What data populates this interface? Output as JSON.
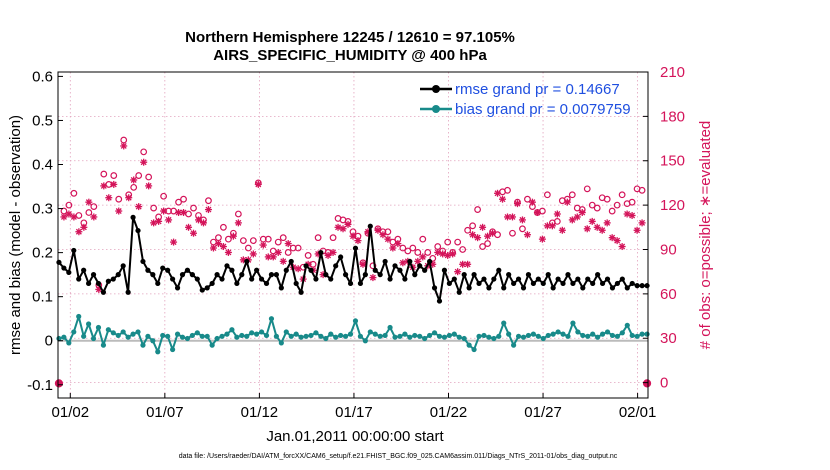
{
  "chart_data": {
    "type": "line",
    "title_line1": "Northern Hemisphere 12245 / 12610 = 97.105%",
    "title_line2": "AIRS_SPECIFIC_HUMIDITY @ 400 hPa",
    "xlabel": "Jan.01,2011 00:00:00 start",
    "ylabel_left": "rmse and bias (model - observation)",
    "ylabel_right": "# of obs: o=possible; ∗=evaluated",
    "footer": "data file: /Users/raeder/DAI/ATM_forcXX/CAM6_setup/f.e21.FHIST_BGC.f09_025.CAM6assim.011/Diags_NTrS_2011-01/obs_diag_output.nc",
    "x_range": [
      0.35,
      31.55
    ],
    "ylim_left": [
      -0.13,
      0.61
    ],
    "ylim_right": [
      -10.4,
      210
    ],
    "left_ticks": [
      "-0.1",
      "0",
      "0.1",
      "0.2",
      "0.3",
      "0.4",
      "0.5",
      "0.6"
    ],
    "right_ticks": [
      "0",
      "30",
      "60",
      "90",
      "120",
      "150",
      "180",
      "210"
    ],
    "x_ticks": [
      {
        "label": "01/02",
        "day": 1
      },
      {
        "label": "01/07",
        "day": 6
      },
      {
        "label": "01/12",
        "day": 11
      },
      {
        "label": "01/17",
        "day": 16
      },
      {
        "label": "01/22",
        "day": 21
      },
      {
        "label": "01/27",
        "day": 26
      },
      {
        "label": "02/01",
        "day": 31
      }
    ],
    "colors": {
      "rmse": "#000000",
      "bias": "#188a8a",
      "obs": "#d4145a",
      "legend_text": "#1f4fe0",
      "zero_line": "#bbbbbb",
      "grid": "#e2a2bd"
    },
    "series": [
      {
        "name": "rmse",
        "legend": "rmse grand pr = 0.14667",
        "color": "#000000",
        "values": [
          0.178,
          0.165,
          0.155,
          0.205,
          0.14,
          0.16,
          0.13,
          0.15,
          0.13,
          0.11,
          0.135,
          0.14,
          0.15,
          0.17,
          0.11,
          0.28,
          0.25,
          0.18,
          0.16,
          0.15,
          0.13,
          0.165,
          0.16,
          0.14,
          0.12,
          0.15,
          0.16,
          0.15,
          0.14,
          0.115,
          0.12,
          0.13,
          0.15,
          0.14,
          0.17,
          0.16,
          0.13,
          0.15,
          0.18,
          0.14,
          0.16,
          0.14,
          0.13,
          0.15,
          0.15,
          0.12,
          0.16,
          0.18,
          0.13,
          0.11,
          0.17,
          0.16,
          0.14,
          0.2,
          0.15,
          0.14,
          0.17,
          0.19,
          0.15,
          0.13,
          0.21,
          0.13,
          0.15,
          0.26,
          0.16,
          0.15,
          0.18,
          0.14,
          0.17,
          0.16,
          0.14,
          0.18,
          0.15,
          0.17,
          0.16,
          0.18,
          0.12,
          0.09,
          0.16,
          0.13,
          0.14,
          0.11,
          0.15,
          0.12,
          0.15,
          0.13,
          0.14,
          0.12,
          0.14,
          0.16,
          0.12,
          0.15,
          0.13,
          0.14,
          0.12,
          0.15,
          0.13,
          0.14,
          0.13,
          0.15,
          0.12,
          0.14,
          0.13,
          0.15,
          0.13,
          0.14,
          0.12,
          0.14,
          0.13,
          0.15,
          0.13,
          0.14,
          0.12,
          0.13,
          0.14,
          0.12,
          0.13,
          0.125,
          0.125,
          0.125
        ]
      },
      {
        "name": "bias",
        "legend": "bias grand pr = 0.0079759",
        "color": "#188a8a",
        "values": [
          0.005,
          0.008,
          -0.005,
          0.02,
          0.055,
          0.01,
          0.038,
          0.005,
          0.03,
          -0.01,
          0.025,
          0.018,
          0.012,
          0.02,
          0.008,
          0.015,
          0.02,
          -0.01,
          0.01,
          0.0,
          -0.025,
          0.012,
          0.01,
          -0.02,
          0.015,
          0.008,
          0.005,
          0.012,
          0.018,
          0.01,
          0.01,
          -0.01,
          0.005,
          0.01,
          0.015,
          0.025,
          0.008,
          0.012,
          0.01,
          0.018,
          0.015,
          0.02,
          0.012,
          0.05,
          0.01,
          -0.005,
          0.02,
          0.01,
          0.015,
          0.008,
          0.01,
          0.012,
          0.018,
          0.01,
          0.005,
          0.015,
          0.008,
          0.012,
          0.01,
          0.015,
          0.045,
          0.01,
          0.0,
          0.02,
          0.015,
          0.01,
          0.012,
          0.03,
          0.008,
          0.01,
          0.015,
          0.008,
          0.012,
          0.01,
          0.005,
          0.012,
          0.018,
          0.01,
          0.008,
          0.012,
          0.015,
          0.008,
          0.005,
          -0.01,
          -0.02,
          0.01,
          0.012,
          0.008,
          0.005,
          0.01,
          0.04,
          0.015,
          -0.01,
          0.01,
          0.008,
          0.012,
          0.015,
          0.01,
          0.005,
          0.012,
          0.015,
          0.02,
          0.015,
          0.01,
          0.04,
          0.02,
          0.012,
          0.01,
          0.015,
          0.008,
          0.015,
          0.02,
          0.012,
          0.01,
          0.018,
          0.035,
          0.012,
          0.01,
          0.015,
          0.015
        ]
      },
      {
        "name": "possible",
        "marker": "circle",
        "color": "#d4145a",
        "values": [
          -0.5,
          116,
          120,
          128,
          113,
          108,
          115,
          119,
          66,
          141,
          134,
          140,
          124,
          164,
          127,
          132,
          140,
          156,
          139,
          118,
          112,
          126,
          116,
          116,
          122,
          124,
          114,
          118,
          113,
          110,
          123,
          95,
          98,
          105,
          97,
          101,
          114,
          96,
          91,
          96,
          135,
          97,
          97,
          89,
          95,
          98,
          88,
          91,
          91,
          78,
          86,
          80,
          98,
          89,
          88,
          98,
          111,
          110,
          109,
          102,
          99,
          81,
          101,
          79,
          104,
          102,
          102,
          95,
          97,
          91,
          89,
          91,
          88,
          97,
          88,
          84,
          92,
          89,
          95,
          88,
          95,
          90,
          103,
          106,
          117,
          92,
          94,
          102,
          100,
          129,
          130,
          101,
          122,
          104,
          124,
          119,
          115,
          116,
          127,
          108,
          109,
          123,
          124,
          127,
          118,
          117,
          131,
          120,
          118,
          125,
          124,
          116,
          120,
          127,
          121,
          122,
          131,
          130,
          -0.5
        ]
      },
      {
        "name": "evaluated",
        "marker": "star",
        "color": "#d4145a",
        "values": [
          -0.5,
          112,
          114,
          112,
          102,
          105,
          122,
          112,
          63,
          133,
          125,
          134,
          116,
          160,
          125,
          137,
          119,
          149,
          133,
          108,
          109,
          116,
          110,
          95,
          115,
          115,
          105,
          101,
          110,
          108,
          117,
          91,
          94,
          92,
          88,
          99,
          108,
          83,
          83,
          87,
          134,
          93,
          85,
          85,
          88,
          82,
          94,
          78,
          77,
          70,
          80,
          76,
          87,
          73,
          86,
          88,
          105,
          104,
          107,
          99,
          96,
          80,
          102,
          71,
          103,
          100,
          97,
          91,
          94,
          81,
          82,
          78,
          82,
          85,
          79,
          80,
          88,
          87,
          86,
          87,
          75,
          80,
          80,
          100,
          98,
          105,
          99,
          101,
          128,
          124,
          112,
          112,
          121,
          110,
          100,
          122,
          115,
          97,
          106,
          106,
          114,
          103,
          122,
          110,
          112,
          115,
          104,
          109,
          105,
          103,
          108,
          98,
          96,
          92,
          114,
          113,
          103,
          108,
          -0.5
        ]
      }
    ]
  }
}
